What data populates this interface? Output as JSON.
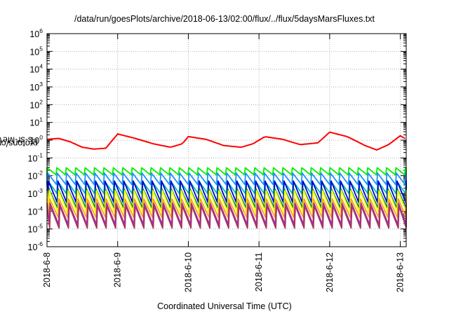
{
  "chart_data": {
    "type": "line",
    "title": "/data/run/goesPlots/archive/2018-06-13/02:00/flux/../flux/5daysMarsFluxes.txt",
    "xlabel": "Coordinated Universal Time (UTC)",
    "ylabel": {
      "before": "protons/cm",
      "sup": "2",
      "after": "-s-sr-MeV"
    },
    "yscale": "log",
    "ylim": [
      "1e-6",
      "1e6"
    ],
    "y_ticks": [
      {
        "base": "10",
        "exp": "-6"
      },
      {
        "base": "10",
        "exp": "-5"
      },
      {
        "base": "10",
        "exp": "-4"
      },
      {
        "base": "10",
        "exp": "-3"
      },
      {
        "base": "10",
        "exp": "-2"
      },
      {
        "base": "10",
        "exp": "-1"
      },
      {
        "base": "10",
        "exp": "0"
      },
      {
        "base": "10",
        "exp": "1"
      },
      {
        "base": "10",
        "exp": "2"
      },
      {
        "base": "10",
        "exp": "3"
      },
      {
        "base": "10",
        "exp": "4"
      },
      {
        "base": "10",
        "exp": "5"
      },
      {
        "base": "10",
        "exp": "6"
      }
    ],
    "x_ticks": [
      "2018-6-8",
      "2018-6-9",
      "2018-6-10",
      "2018-6-11",
      "2018-6-12",
      "2018-6-13"
    ],
    "xlim": [
      "2018-06-08 00:00",
      "2018-06-13 02:00"
    ],
    "grid": true,
    "series": [
      {
        "color": "#ff0000",
        "log10_values": [
          {
            "x": "2018-06-08 00:00",
            "log10": 0.05
          },
          {
            "x": "2018-06-08 04:00",
            "log10": 0.1
          },
          {
            "x": "2018-06-08 08:00",
            "log10": -0.1
          },
          {
            "x": "2018-06-08 12:00",
            "log10": -0.4
          },
          {
            "x": "2018-06-08 16:00",
            "log10": -0.5
          },
          {
            "x": "2018-06-08 20:00",
            "log10": -0.45
          },
          {
            "x": "2018-06-09 00:00",
            "log10": 0.35
          },
          {
            "x": "2018-06-09 06:00",
            "log10": 0.1
          },
          {
            "x": "2018-06-09 12:00",
            "log10": -0.2
          },
          {
            "x": "2018-06-09 18:00",
            "log10": -0.4
          },
          {
            "x": "2018-06-09 22:00",
            "log10": -0.2
          },
          {
            "x": "2018-06-10 00:00",
            "log10": 0.2
          },
          {
            "x": "2018-06-10 06:00",
            "log10": 0.05
          },
          {
            "x": "2018-06-10 12:00",
            "log10": -0.3
          },
          {
            "x": "2018-06-10 18:00",
            "log10": -0.4
          },
          {
            "x": "2018-06-10 22:00",
            "log10": -0.2
          },
          {
            "x": "2018-06-11 02:00",
            "log10": 0.2
          },
          {
            "x": "2018-06-11 08:00",
            "log10": 0.05
          },
          {
            "x": "2018-06-11 14:00",
            "log10": -0.25
          },
          {
            "x": "2018-06-11 20:00",
            "log10": -0.15
          },
          {
            "x": "2018-06-12 00:00",
            "log10": 0.45
          },
          {
            "x": "2018-06-12 06:00",
            "log10": 0.2
          },
          {
            "x": "2018-06-12 12:00",
            "log10": -0.3
          },
          {
            "x": "2018-06-12 16:00",
            "log10": -0.55
          },
          {
            "x": "2018-06-12 20:00",
            "log10": -0.25
          },
          {
            "x": "2018-06-13 00:00",
            "log10": 0.25
          },
          {
            "x": "2018-06-13 02:00",
            "log10": 0.05
          }
        ]
      },
      {
        "color": "#00ee00",
        "peak_log10": -1.55,
        "trough_log10": -1.95
      },
      {
        "color": "#1e90ff",
        "peak_log10": -1.85,
        "trough_log10": -2.5
      },
      {
        "color": "#00bbbb",
        "peak_log10": -2.3,
        "trough_log10": -3.0
      },
      {
        "color": "#0000cc",
        "peak_log10": -2.3,
        "trough_log10": -3.5
      },
      {
        "color": "#008855",
        "peak_log10": -2.75,
        "trough_log10": -3.8
      },
      {
        "color": "#ffff00",
        "peak_log10": -2.85,
        "trough_log10": -4.05
      },
      {
        "color": "#ffa500",
        "peak_log10": -3.3,
        "trough_log10": -4.35
      },
      {
        "color": "#9933aa",
        "peak_log10": -3.55,
        "trough_log10": -4.75
      },
      {
        "color": "#aa3366",
        "peak_log10": -3.7,
        "trough_log10": -4.95
      }
    ],
    "sawtooth_period_hours": 3.2
  }
}
